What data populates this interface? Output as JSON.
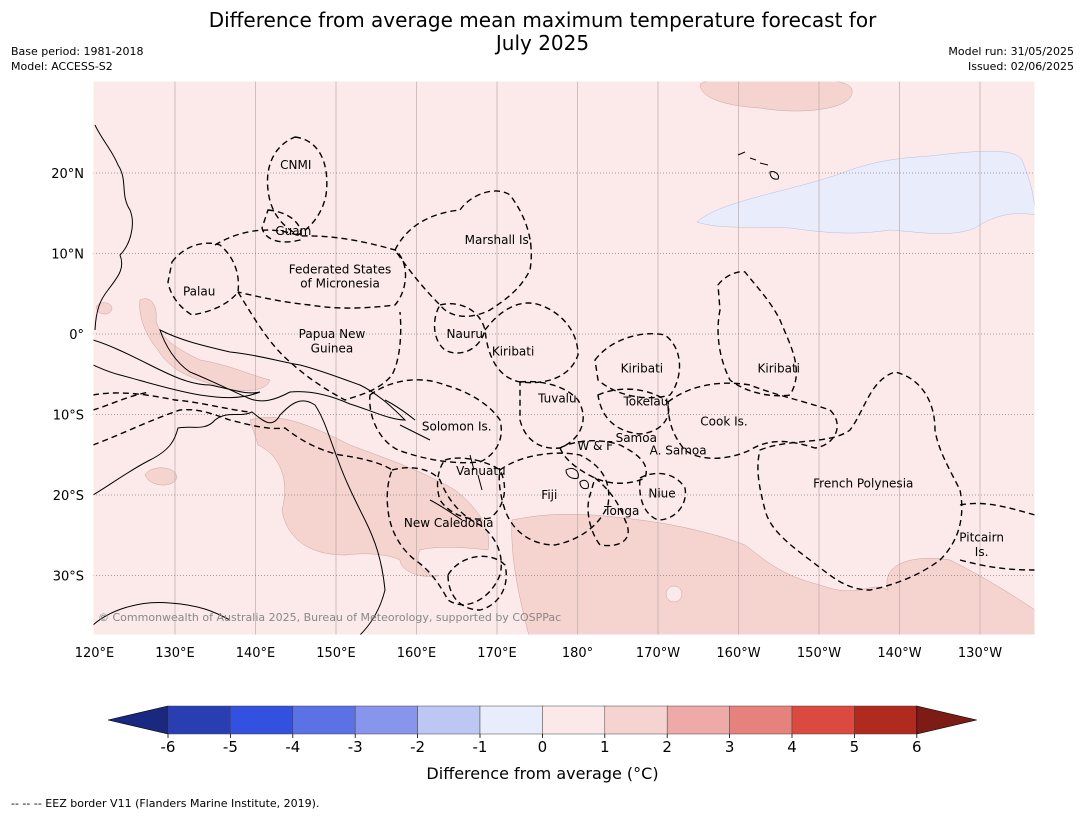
{
  "title_line1": "Difference from average mean maximum temperature forecast for",
  "title_line2": "July 2025",
  "base_period": "Base period: 1981-2018",
  "model": "Model: ACCESS-S2",
  "model_run": "Model run: 31/05/2025",
  "issued": "Issued: 02/06/2025",
  "copyright": "© Commonwealth of Australia 2025, Bureau of Meteorology, supported by COSPPac",
  "footer": "--  --  -- EEZ border V11 (Flanders Marine Institute, 2019).",
  "colorbar": {
    "title": "Difference from average (°C)",
    "ticks": [
      "-6",
      "-5",
      "-4",
      "-3",
      "-2",
      "-1",
      "0",
      "1",
      "2",
      "3",
      "4",
      "5",
      "6"
    ],
    "colors": [
      "#2a3eb3",
      "#3350e0",
      "#5a72e6",
      "#8795ec",
      "#bec6f4",
      "#e8ecfb",
      "#fbe8e8",
      "#f5d3d0",
      "#eeaaa6",
      "#e6827e",
      "#da4a41",
      "#b02a20"
    ],
    "under_color": "#1b2880",
    "over_color": "#7d1c16"
  },
  "lon_labels": [
    "120°E",
    "130°E",
    "140°E",
    "150°E",
    "160°E",
    "170°E",
    "180°",
    "170°W",
    "160°W",
    "150°W",
    "140°W",
    "130°W"
  ],
  "lat_labels": [
    "20°N",
    "10°N",
    "0°",
    "10°S",
    "20°S",
    "30°S"
  ],
  "regions": [
    {
      "name": "CNMI",
      "lon": 145,
      "lat": 21
    },
    {
      "name": "Guam",
      "lon": 144.7,
      "lat": 12.8
    },
    {
      "name": "Marshall Is.",
      "lon": 170.2,
      "lat": 11.7
    },
    {
      "name": "Federated States",
      "lon": 150.5,
      "lat": 8
    },
    {
      "name": "of Micronesia",
      "lon": 150.5,
      "lat": 6.3
    },
    {
      "name": "Palau",
      "lon": 133,
      "lat": 5.3
    },
    {
      "name": "Papua New",
      "lon": 149.5,
      "lat": 0
    },
    {
      "name": "Guinea",
      "lon": 149.5,
      "lat": -1.8
    },
    {
      "name": "Nauru",
      "lon": 166,
      "lat": 0
    },
    {
      "name": "Kiribati",
      "lon": 172,
      "lat": -2.2
    },
    {
      "name": "Kiribati",
      "lon": -172,
      "lat": -4.3
    },
    {
      "name": "Kiribati",
      "lon": -155,
      "lat": -4.3
    },
    {
      "name": "Tuvalu",
      "lon": 177.5,
      "lat": -8
    },
    {
      "name": "Tokelau",
      "lon": -171.5,
      "lat": -8.4
    },
    {
      "name": "Solomon Is.",
      "lon": 165,
      "lat": -11.5
    },
    {
      "name": "Cook Is.",
      "lon": -161.8,
      "lat": -10.9
    },
    {
      "name": "Samoa",
      "lon": -172.7,
      "lat": -12.9
    },
    {
      "name": "W & F",
      "lon": -177.8,
      "lat": -13.9
    },
    {
      "name": "A. Samoa",
      "lon": -167.5,
      "lat": -14.5
    },
    {
      "name": "Vanuatu",
      "lon": 168,
      "lat": -17
    },
    {
      "name": "Fiji",
      "lon": 176.5,
      "lat": -20
    },
    {
      "name": "Niue",
      "lon": -169.5,
      "lat": -19.8
    },
    {
      "name": "Tonga",
      "lon": -174.5,
      "lat": -22
    },
    {
      "name": "French Polynesia",
      "lon": -144.5,
      "lat": -18.6
    },
    {
      "name": "New Caledonia",
      "lon": 164,
      "lat": -23.5
    },
    {
      "name": "Pitcairn",
      "lon": -129.8,
      "lat": -25.3
    },
    {
      "name": "Is.",
      "lon": -129.8,
      "lat": -27.1
    }
  ]
}
